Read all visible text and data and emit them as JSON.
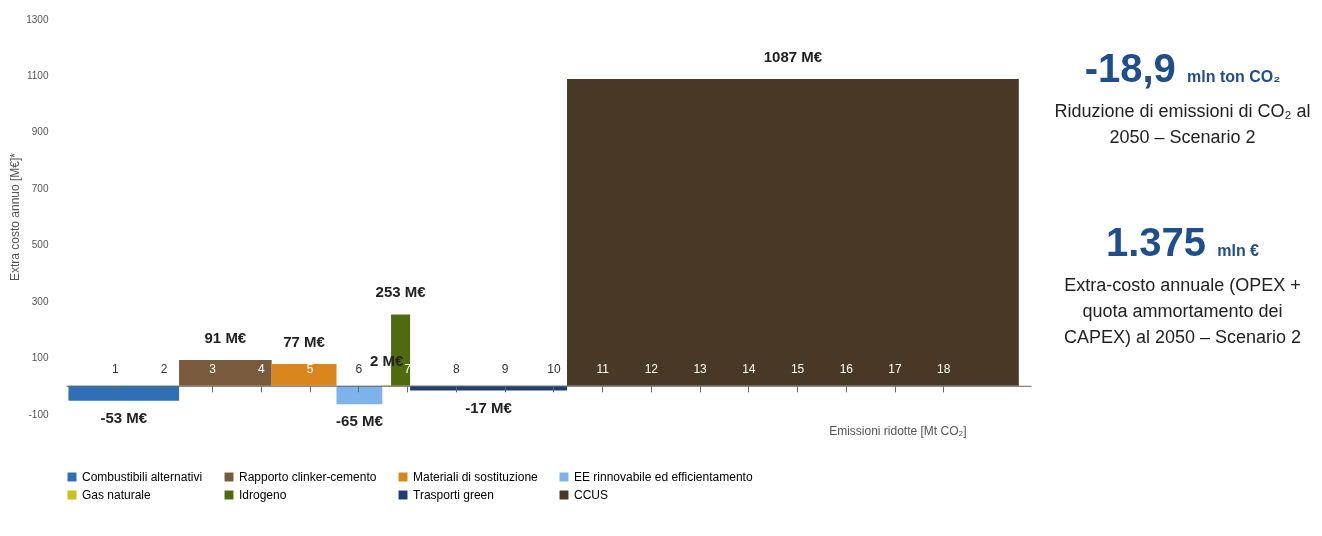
{
  "chart_data": {
    "type": "histogram",
    "ylabel": "Extra costo annuo [M€]*",
    "xlabel": "Emissioni ridotte [Mt CO₂]",
    "xlim": [
      0,
      19.8
    ],
    "xticks": [
      1,
      2,
      3,
      4,
      5,
      6,
      7,
      8,
      9,
      10,
      11,
      12,
      13,
      14,
      15,
      16,
      17,
      18
    ],
    "ylim": [
      -100,
      1300
    ],
    "yticks": [
      -100,
      100,
      300,
      500,
      700,
      900,
      1100,
      1300
    ],
    "legend": "bottom",
    "grid": false,
    "bins": [
      0.05,
      2.32,
      4.22,
      5.55,
      6.49,
      6.67,
      7.06,
      10.28,
      19.55
    ],
    "series": [
      {
        "name": "Combustibili alternativi",
        "color": "#2e6fb5",
        "values": [
          -53,
          null,
          null,
          null,
          null,
          null,
          null,
          null
        ],
        "value_labels": [
          "-53 M€",
          null,
          null,
          null,
          null,
          null,
          null,
          null
        ]
      },
      {
        "name": "Rapporto clinker-cemento",
        "color": "#7a5a3c",
        "values": [
          null,
          91,
          null,
          null,
          null,
          null,
          null,
          null
        ],
        "value_labels": [
          null,
          "91 M€",
          null,
          null,
          null,
          null,
          null,
          null
        ]
      },
      {
        "name": "Materiali di sostituzione",
        "color": "#d9861c",
        "values": [
          null,
          null,
          77,
          null,
          null,
          null,
          null,
          null
        ],
        "value_labels": [
          null,
          null,
          "77 M€",
          null,
          null,
          null,
          null,
          null
        ]
      },
      {
        "name": "EE rinnovabile ed efficientamento",
        "color": "#7db3ea",
        "values": [
          null,
          null,
          null,
          -65,
          null,
          null,
          null,
          null
        ],
        "value_labels": [
          null,
          null,
          null,
          "-65 M€",
          null,
          null,
          null,
          null
        ]
      },
      {
        "name": "Gas naturale",
        "color": "#c9c21a",
        "values": [
          null,
          null,
          null,
          null,
          2,
          null,
          null,
          null
        ],
        "value_labels": [
          null,
          null,
          null,
          null,
          "2 M€",
          null,
          null,
          null
        ]
      },
      {
        "name": "Idrogeno",
        "color": "#4f6b0e",
        "values": [
          null,
          null,
          null,
          null,
          null,
          253,
          null,
          null
        ],
        "value_labels": [
          null,
          null,
          null,
          null,
          null,
          "253 M€",
          null,
          null
        ]
      },
      {
        "name": "Trasporti green",
        "color": "#1f3f6e",
        "values": [
          null,
          null,
          null,
          null,
          null,
          null,
          -17,
          null
        ],
        "value_labels": [
          null,
          null,
          null,
          null,
          null,
          null,
          "-17 M€",
          null
        ]
      },
      {
        "name": "CCUS",
        "color": "#4a3826",
        "values": [
          null,
          null,
          null,
          null,
          null,
          null,
          null,
          1087
        ],
        "value_labels": [
          null,
          null,
          null,
          null,
          null,
          null,
          null,
          "1087 M€"
        ]
      }
    ],
    "annotations": [
      "-18,9 mln ton CO₂",
      "Riduzione di emissioni di CO₂ al 2050 – Scenario 2",
      "1.375 mln €",
      "Extra-costo annuale (OPEX + quota ammortamento dei CAPEX) al 2050 – Scenario 2"
    ]
  }
}
